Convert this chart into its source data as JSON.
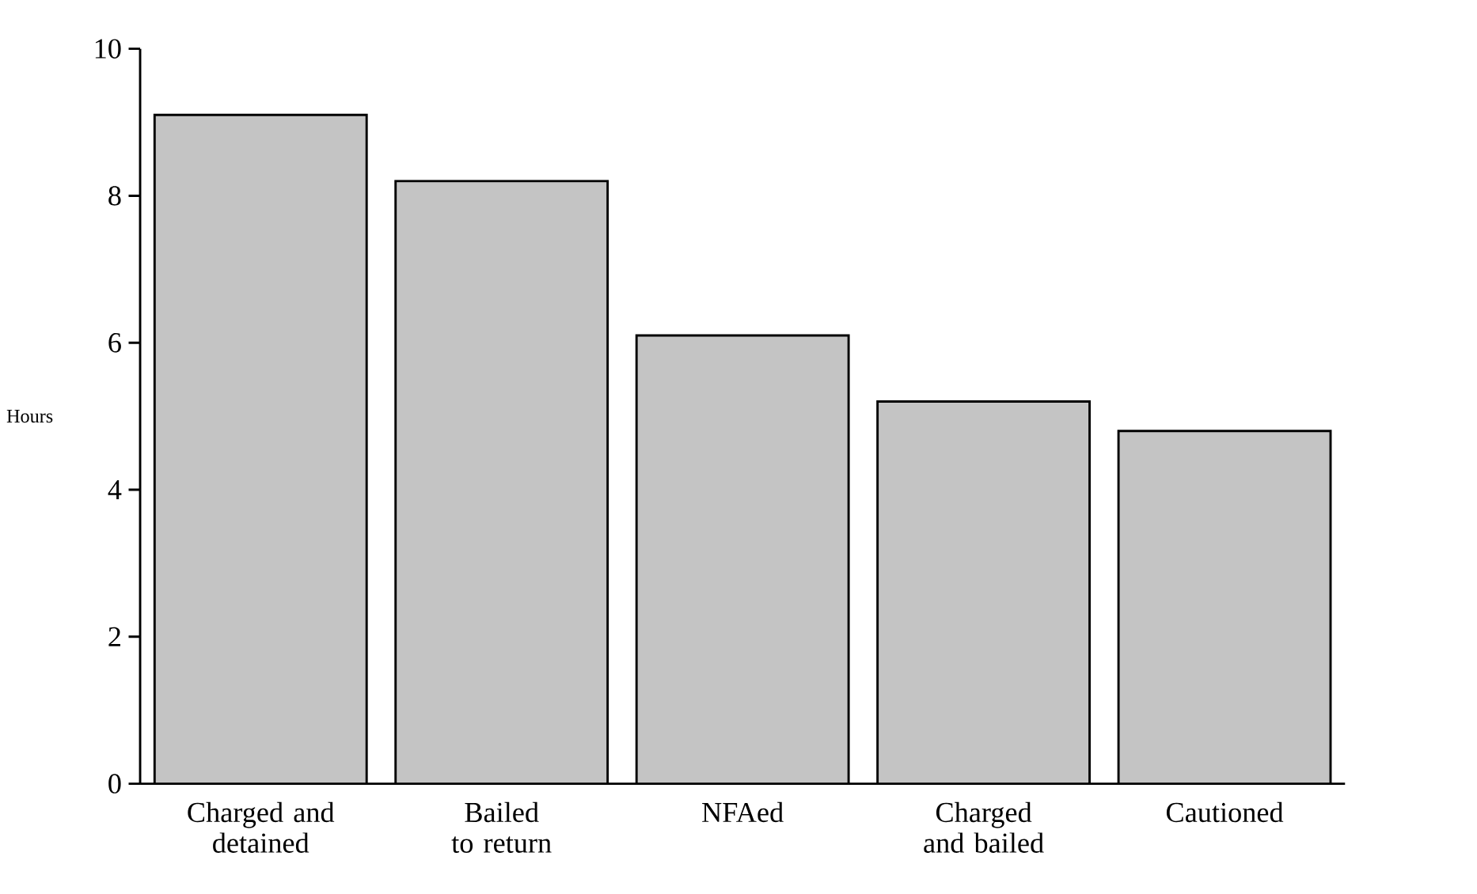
{
  "chart_data": {
    "type": "bar",
    "ylabel": "Hours",
    "categories": [
      "Charged and detained",
      "Bailed to return",
      "NFAed",
      "Charged and bailed",
      "Cautioned"
    ],
    "values": [
      9.1,
      8.2,
      6.1,
      5.2,
      4.8
    ],
    "color": "#c4c4c4",
    "ylim": [
      0,
      10
    ],
    "yticks": [
      0,
      2,
      4,
      6,
      8,
      10
    ]
  }
}
